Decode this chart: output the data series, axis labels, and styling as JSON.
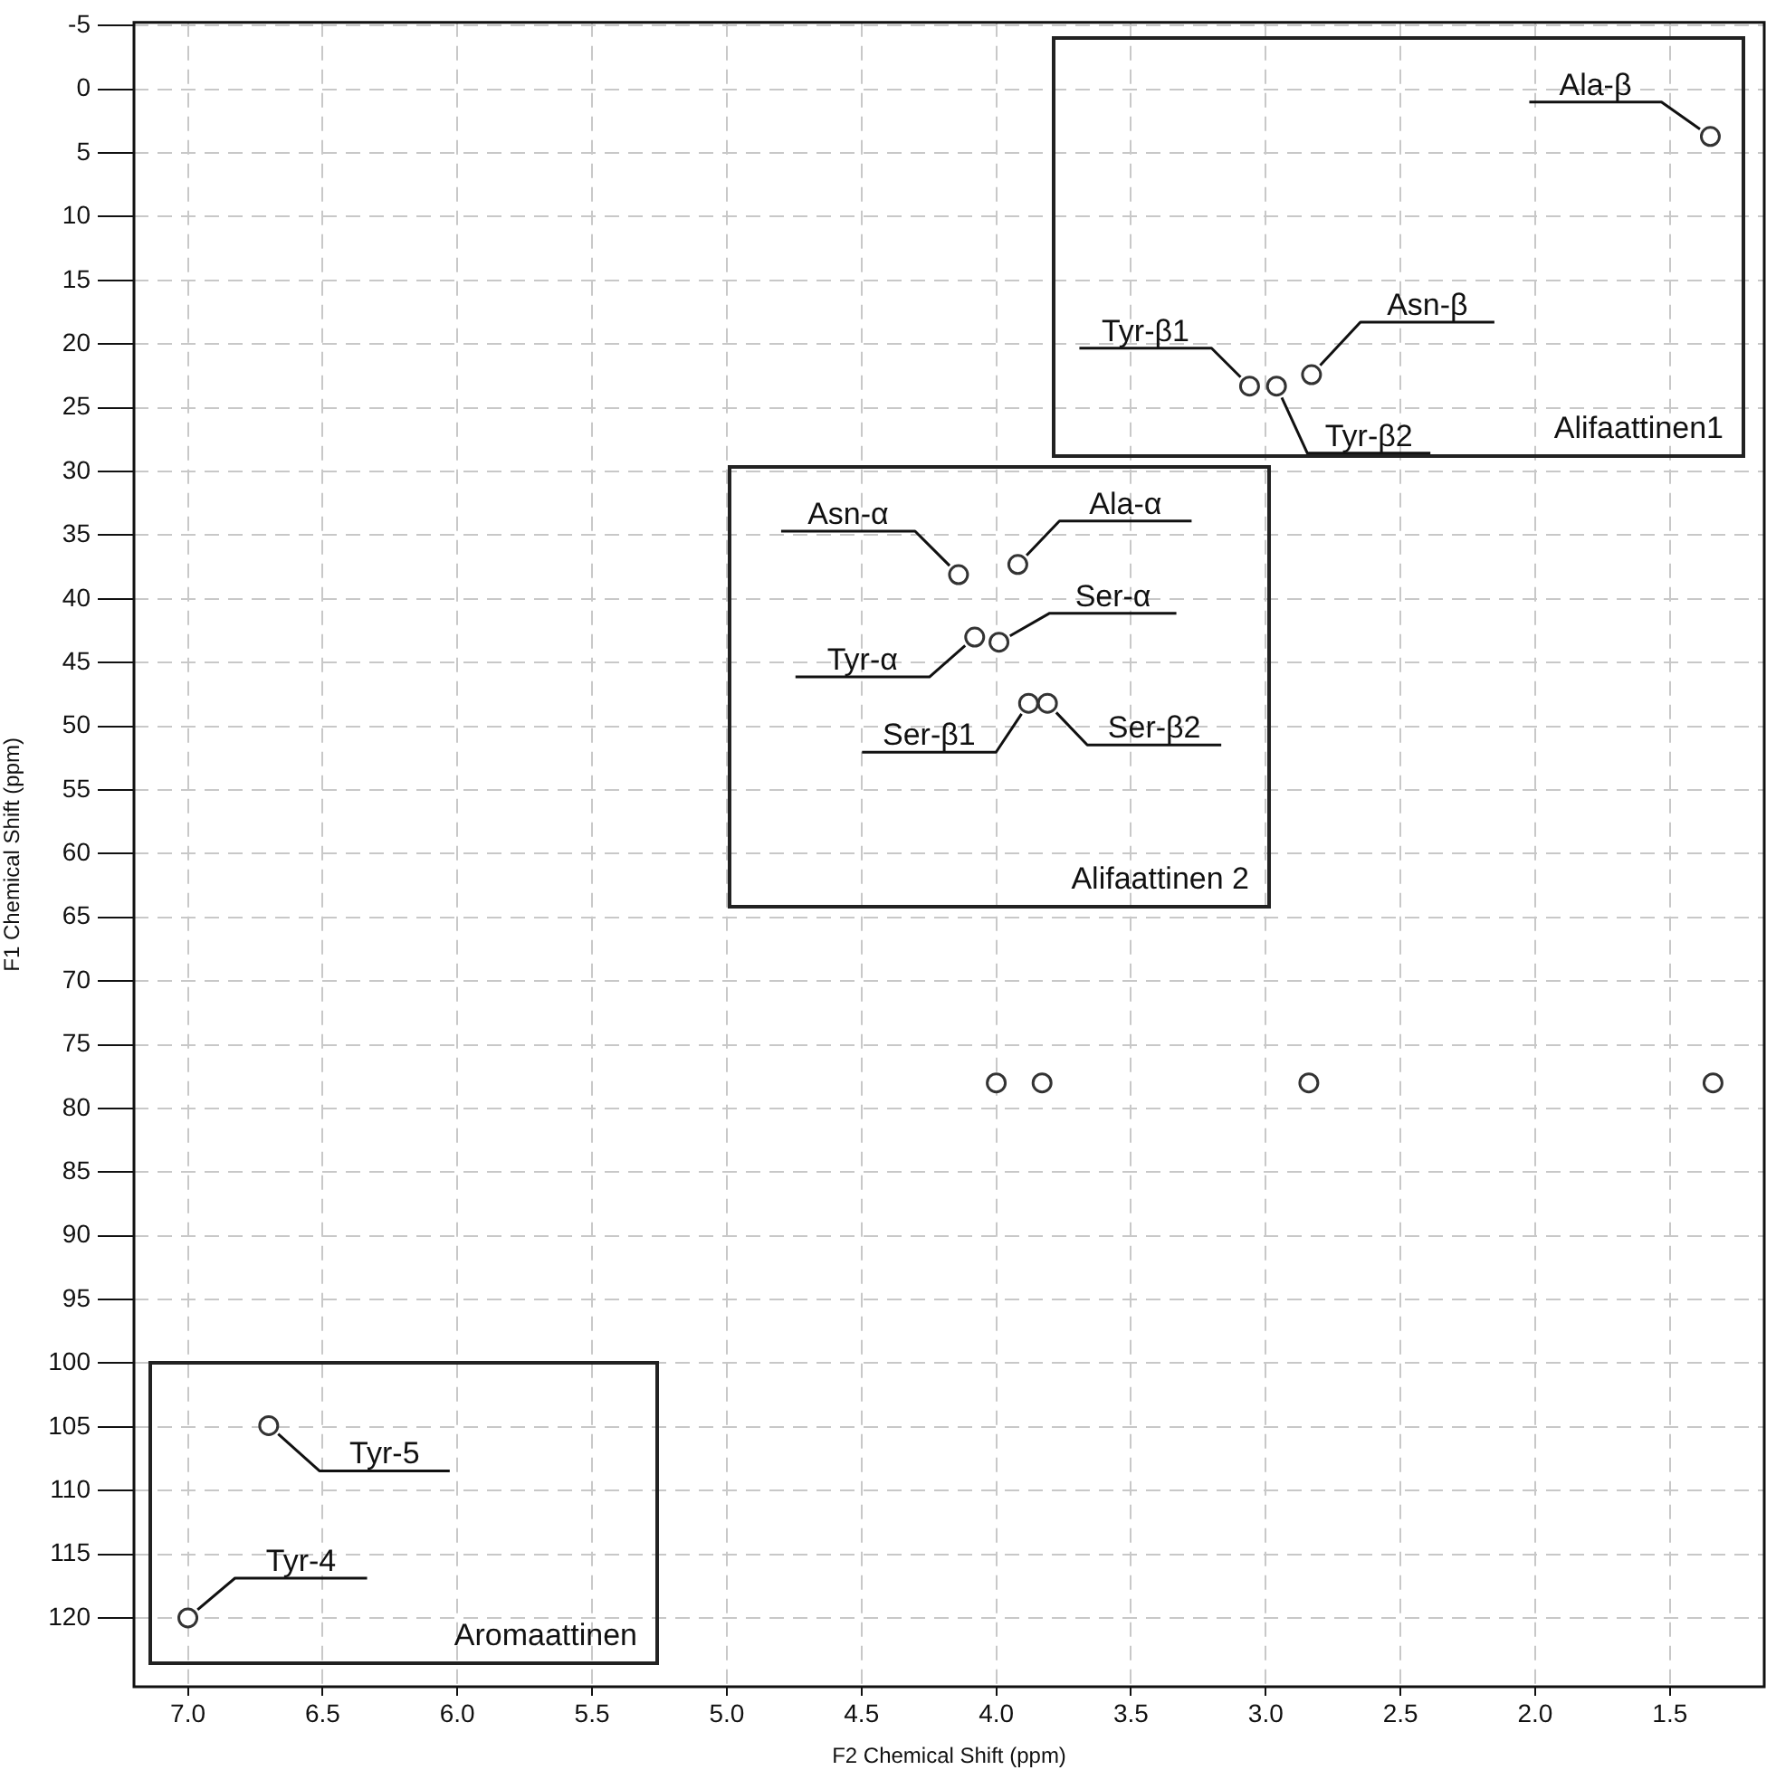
{
  "chart_data": {
    "type": "scatter",
    "xlabel": "F2 Chemical Shift (ppm)",
    "ylabel": "F1 Chemical Shift (ppm)",
    "x": [
      1.35,
      3.06,
      2.96,
      2.83,
      4.14,
      3.92,
      4.08,
      3.99,
      3.88,
      3.81,
      6.7,
      7.0,
      4.0,
      3.83,
      2.84,
      1.34
    ],
    "values": [
      3.7,
      23.3,
      23.3,
      22.4,
      38.1,
      37.3,
      43.0,
      43.4,
      48.2,
      48.2,
      104.9,
      120.0,
      78.0,
      78.0,
      78.0,
      78.0
    ],
    "color": "#333333",
    "marker": "circle",
    "grid": true,
    "xlim": [
      7.2,
      1.15
    ],
    "ylim": [
      125.4,
      -5.25
    ],
    "xticks": [
      {
        "value": 7,
        "label": "7.0"
      },
      6.5,
      {
        "value": 6,
        "label": "6.0"
      },
      5.5,
      {
        "value": 5,
        "label": "5.0"
      },
      4.5,
      {
        "value": 4,
        "label": "4.0"
      },
      3.5,
      {
        "value": 3,
        "label": "3.0"
      },
      2.5,
      {
        "value": 2,
        "label": "2.0"
      },
      1.5
    ],
    "yticks": [
      -5,
      0,
      5,
      10,
      15,
      20,
      25,
      30,
      35,
      40,
      45,
      50,
      55,
      60,
      65,
      70,
      75,
      80,
      85,
      90,
      95,
      100,
      105,
      110,
      115,
      120
    ],
    "annotations": [
      {
        "text": "Ala-β",
        "x": 1.35,
        "y": 3.7
      },
      {
        "text": "Tyr-β1",
        "x": 3.06,
        "y": 23.3
      },
      {
        "text": "Tyr-β2",
        "x": 2.96,
        "y": 23.3
      },
      {
        "text": "Asn-β",
        "x": 2.83,
        "y": 22.4
      },
      {
        "text": "Asn-α",
        "x": 4.14,
        "y": 38.1
      },
      {
        "text": "Ala-α",
        "x": 3.92,
        "y": 37.3
      },
      {
        "text": "Tyr-α",
        "x": 4.08,
        "y": 43.0
      },
      {
        "text": "Ser-α",
        "x": 3.99,
        "y": 43.4
      },
      {
        "text": "Ser-β1",
        "x": 3.88,
        "y": 48.2
      },
      {
        "text": "Ser-β2",
        "x": 3.81,
        "y": 48.2
      },
      {
        "text": "Tyr-5",
        "x": 6.7,
        "y": 104.9
      },
      {
        "text": "Tyr-4",
        "x": 7.0,
        "y": 120.0
      },
      "Alifaattinen1",
      "Alifaattinen 2",
      "Aromaattinen"
    ]
  }
}
